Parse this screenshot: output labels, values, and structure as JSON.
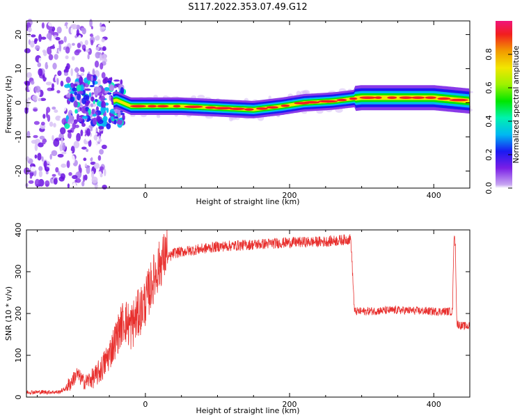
{
  "title": "S117.2022.353.07.49.G12",
  "chart_data": [
    {
      "type": "heatmap",
      "xlabel": "Height of straight line (km)",
      "ylabel": "Frequency (Hz)",
      "xlim": [
        -165,
        450
      ],
      "ylim": [
        -25,
        24
      ],
      "xticks": [
        0,
        200,
        400
      ],
      "yticks": [
        20,
        10,
        0,
        -10,
        -20
      ],
      "colorbar": {
        "label": "Normalized spectral amplitude",
        "range": [
          0.0,
          1.0
        ],
        "ticks": [
          "0.0",
          "0.2",
          "0.4",
          "0.6",
          "0.8"
        ]
      },
      "ridge": {
        "x": [
          -100,
          -80,
          -60,
          -40,
          -20,
          0,
          50,
          100,
          150,
          190,
          220,
          260,
          300,
          350,
          400,
          450
        ],
        "y": [
          -1.5,
          1.5,
          -0.5,
          0.8,
          -1,
          -1,
          -1,
          -1.5,
          -2,
          -1,
          0,
          0.5,
          1.5,
          1.5,
          1.5,
          0.5
        ]
      }
    },
    {
      "type": "line",
      "xlabel": "Height of straight line (km)",
      "ylabel": "SNR (10 * v/v)",
      "xlim": [
        -165,
        450
      ],
      "ylim": [
        0,
        400
      ],
      "xticks": [
        0,
        200,
        400
      ],
      "yticks": [
        0,
        100,
        200,
        300,
        400
      ],
      "series": [
        {
          "color": "#e8302e",
          "x": [
            -165,
            -120,
            -105,
            -95,
            -85,
            -70,
            -60,
            -50,
            -40,
            -30,
            -20,
            -10,
            0,
            10,
            20,
            30,
            40,
            60,
            80,
            100,
            150,
            200,
            250,
            285,
            290,
            300,
            350,
            400,
            426,
            428,
            430,
            432,
            440,
            450
          ],
          "y": [
            12,
            12,
            25,
            50,
            30,
            40,
            60,
            90,
            130,
            170,
            150,
            180,
            210,
            260,
            300,
            330,
            345,
            350,
            355,
            360,
            365,
            370,
            372,
            378,
            205,
            205,
            208,
            205,
            205,
            390,
            360,
            175,
            170,
            170
          ]
        }
      ]
    }
  ]
}
